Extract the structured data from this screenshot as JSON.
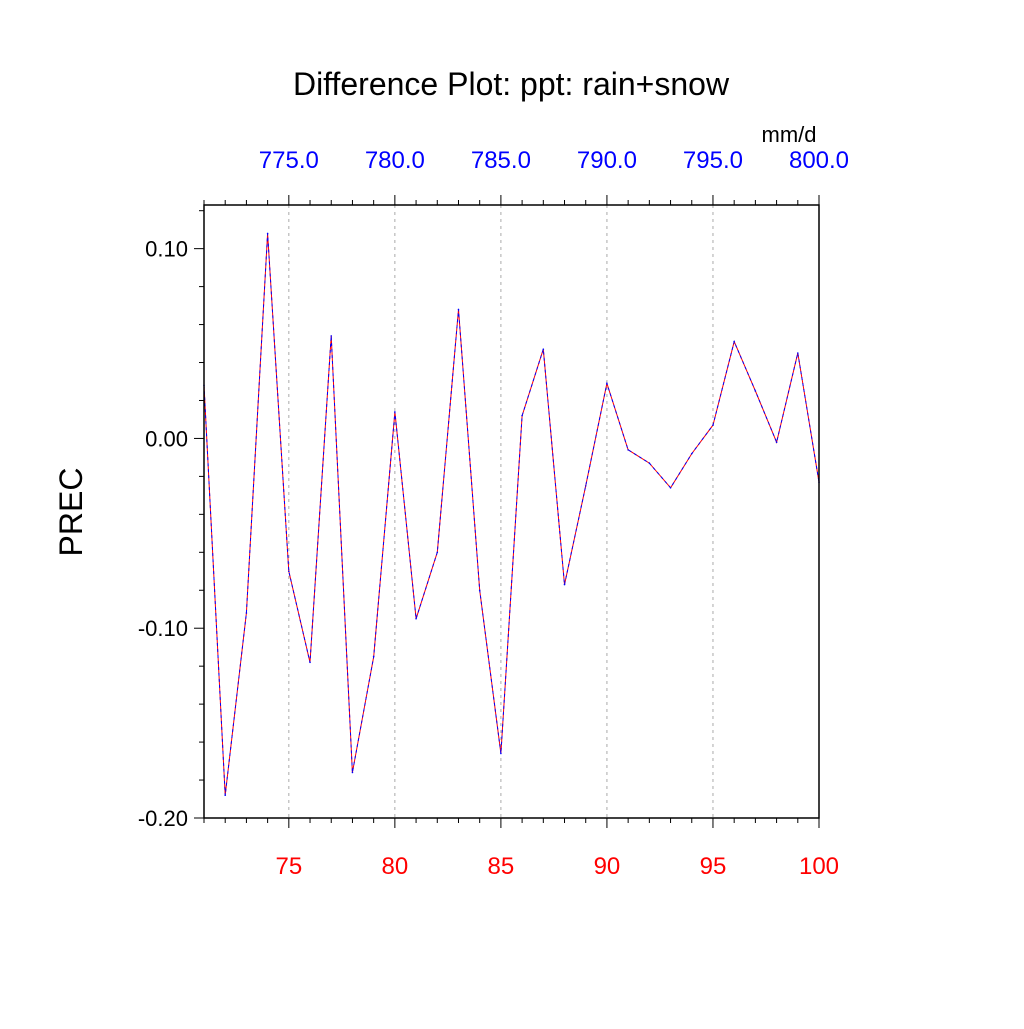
{
  "chart_data": {
    "type": "line",
    "title": "Difference Plot: ppt: rain+snow",
    "ylabel": "PREC",
    "xlabel": "",
    "units_label": "mm/d",
    "xlim": [
      71,
      100
    ],
    "ylim": [
      -0.2,
      0.123
    ],
    "grid": "vertical dashed at major x ticks",
    "x_bottom": {
      "ticks": [
        75,
        80,
        85,
        90,
        95,
        100
      ],
      "tick_labels": [
        "75",
        "80",
        "85",
        "90",
        "95",
        "100"
      ],
      "color": "#ff0000"
    },
    "x_top": {
      "ticks": [
        75,
        80,
        85,
        90,
        95,
        100
      ],
      "tick_labels": [
        "775.0",
        "780.0",
        "785.0",
        "790.0",
        "795.0",
        "800.0"
      ],
      "color": "#0000ff"
    },
    "y_ticks": [
      0.1,
      0.0,
      -0.1,
      -0.2
    ],
    "y_tick_labels": [
      "0.10",
      "0.00",
      "-0.10",
      "-0.20"
    ],
    "series": [
      {
        "line_colors": [
          "#ff0000",
          "#0000ff"
        ],
        "style": "dashed",
        "x": [
          71,
          72,
          73,
          74,
          75,
          76,
          77,
          78,
          79,
          80,
          81,
          82,
          83,
          84,
          85,
          86,
          87,
          88,
          89,
          90,
          91,
          92,
          93,
          94,
          95,
          96,
          97,
          98,
          99,
          100
        ],
        "values": [
          0.028,
          -0.188,
          -0.092,
          0.108,
          -0.07,
          -0.118,
          0.054,
          -0.176,
          -0.115,
          0.014,
          -0.095,
          -0.06,
          0.068,
          -0.08,
          -0.166,
          0.012,
          0.047,
          -0.077,
          -0.025,
          0.029,
          -0.006,
          -0.013,
          -0.026,
          -0.008,
          0.007,
          0.051,
          0.025,
          -0.002,
          0.045,
          -0.023
        ]
      }
    ]
  }
}
